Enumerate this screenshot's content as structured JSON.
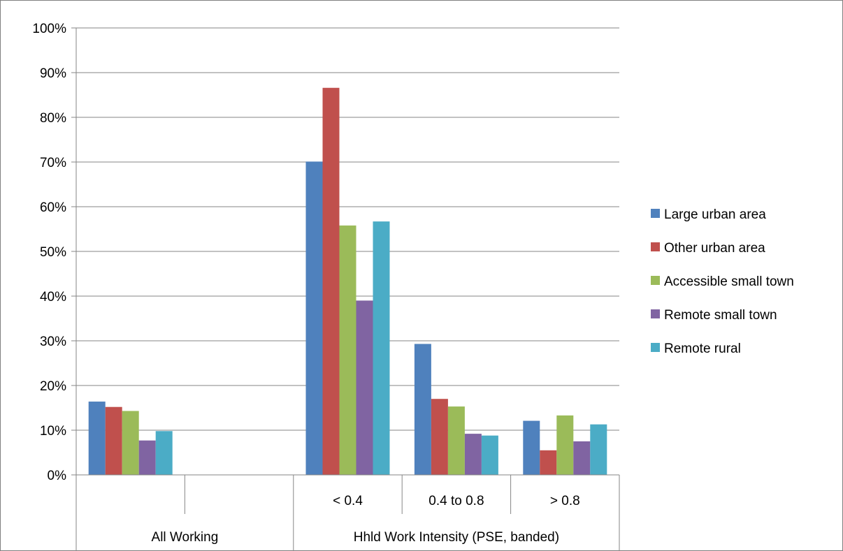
{
  "chart_data": {
    "type": "bar",
    "title": "",
    "xlabel": "",
    "ylabel": "",
    "ylim": [
      0,
      1
    ],
    "y_ticks": [
      "0%",
      "10%",
      "20%",
      "30%",
      "40%",
      "50%",
      "60%",
      "70%",
      "80%",
      "90%",
      "100%"
    ],
    "grid": true,
    "legend_position": "right",
    "categories": [
      "",
      "",
      "< 0.4",
      "0.4 to 0.8",
      "> 0.8"
    ],
    "category_groups": [
      {
        "label": "All Working",
        "span": 2
      },
      {
        "label": "Hhld Work Intensity (PSE, banded)",
        "span": 3
      }
    ],
    "series": [
      {
        "name": "Large urban area",
        "color": "#4F81BD",
        "values": [
          0.164,
          null,
          0.701,
          0.293,
          0.121
        ]
      },
      {
        "name": "Other urban area",
        "color": "#C0504D",
        "values": [
          0.152,
          null,
          0.866,
          0.17,
          0.055
        ]
      },
      {
        "name": "Accessible small town",
        "color": "#9BBB59",
        "values": [
          0.143,
          null,
          0.558,
          0.153,
          0.133
        ]
      },
      {
        "name": "Remote small town",
        "color": "#8064A2",
        "values": [
          0.077,
          null,
          0.39,
          0.092,
          0.075
        ]
      },
      {
        "name": "Remote rural",
        "color": "#4BACC6",
        "values": [
          0.098,
          null,
          0.567,
          0.088,
          0.113
        ]
      }
    ]
  }
}
